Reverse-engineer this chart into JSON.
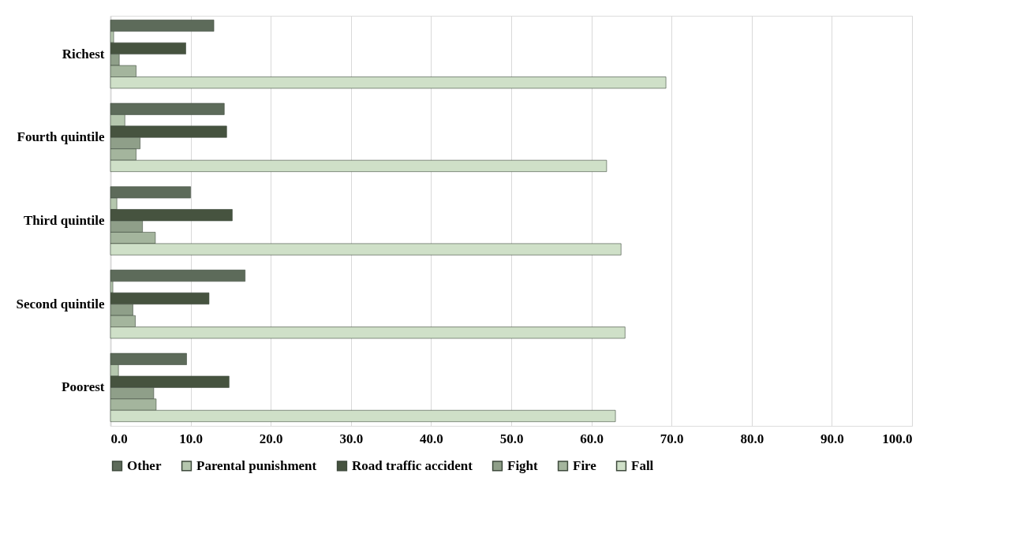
{
  "chart_data": {
    "type": "bar",
    "orientation": "horizontal",
    "categories": [
      "Richest",
      "Fourth quintile",
      "Third quintile",
      "Second quintile",
      "Poorest"
    ],
    "series": [
      {
        "name": "Other",
        "color": "#5d6b5a",
        "values": [
          12.9,
          14.2,
          10.0,
          16.8,
          9.5
        ]
      },
      {
        "name": "Parental punishment",
        "color": "#b5c7ae",
        "values": [
          0.4,
          1.8,
          0.8,
          0.3,
          1.0
        ]
      },
      {
        "name": "Road traffic accident",
        "color": "#46533f",
        "values": [
          9.4,
          14.5,
          15.2,
          12.3,
          14.8
        ]
      },
      {
        "name": "Fight",
        "color": "#8f9f89",
        "values": [
          1.1,
          3.7,
          4.0,
          2.8,
          5.4
        ]
      },
      {
        "name": "Fire",
        "color": "#a4b59d",
        "values": [
          3.2,
          3.2,
          5.6,
          3.1,
          5.7
        ]
      },
      {
        "name": "Fall",
        "color": "#cfe0c8",
        "values": [
          69.3,
          61.9,
          63.7,
          64.2,
          63.0
        ]
      }
    ],
    "xlim": [
      0,
      100
    ],
    "xticks": [
      {
        "value": 0,
        "label": "0.0"
      },
      {
        "value": 10,
        "label": "10.0"
      },
      {
        "value": 20,
        "label": "20.0"
      },
      {
        "value": 30,
        "label": "30.0"
      },
      {
        "value": 40,
        "label": "40.0"
      },
      {
        "value": 50,
        "label": "50.0"
      },
      {
        "value": 60,
        "label": "60.0"
      },
      {
        "value": 70,
        "label": "70.0"
      },
      {
        "value": 80,
        "label": "80.0"
      },
      {
        "value": 90,
        "label": "90.0"
      },
      {
        "value": 100,
        "label": "100.0"
      }
    ],
    "grid": "x",
    "legend": "bottom"
  }
}
